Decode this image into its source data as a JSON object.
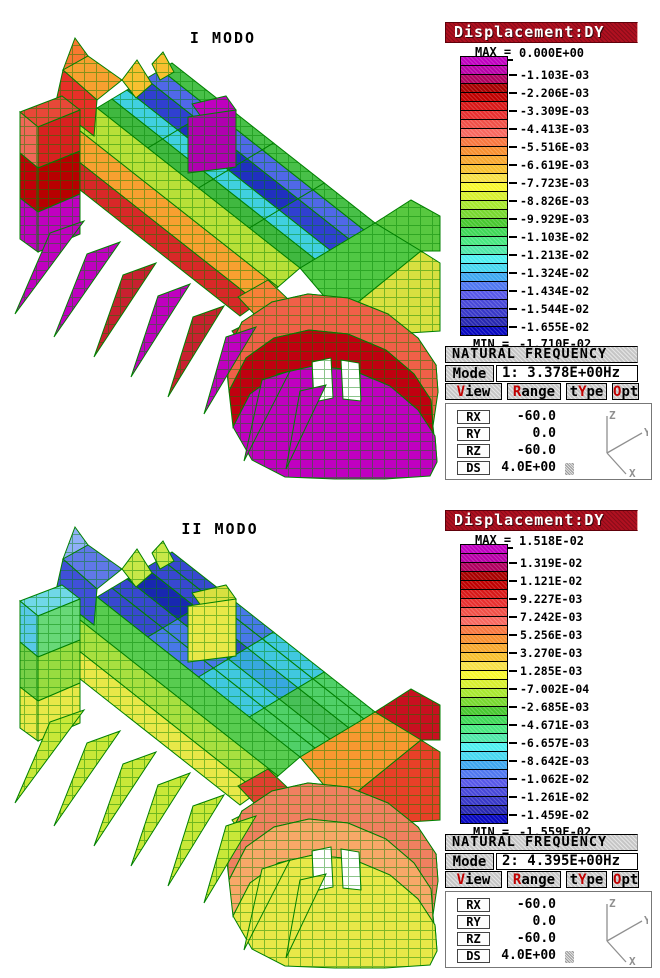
{
  "models": [
    {
      "title": "I MODO"
    },
    {
      "title": "II MODO"
    }
  ],
  "legend_colors": [
    "#C000C0",
    "#B800A8",
    "#B00060",
    "#A80000",
    "#C00000",
    "#D81818",
    "#E83030",
    "#F05048",
    "#F86860",
    "#F87840",
    "#F89030",
    "#F8A830",
    "#F8C030",
    "#F8E048",
    "#F8F830",
    "#D8F030",
    "#A8E830",
    "#78D830",
    "#48C830",
    "#40D858",
    "#48E880",
    "#50E8A8",
    "#50F0F0",
    "#48D8F0",
    "#40A8F0",
    "#5078F0",
    "#5858E8",
    "#4848D8",
    "#3838C8",
    "#2828B0",
    "#0808C0"
  ],
  "panels": [
    {
      "header": "Displacement:DY",
      "max_label": "MAX =",
      "max_value": "0.000E+00",
      "ticks": [
        "-1.103E-03",
        "-2.206E-03",
        "-3.309E-03",
        "-4.413E-03",
        "-5.516E-03",
        "-6.619E-03",
        "-7.723E-03",
        "-8.826E-03",
        "-9.929E-03",
        "-1.103E-02",
        "-1.213E-02",
        "-1.324E-02",
        "-1.434E-02",
        "-1.544E-02",
        "-1.655E-02"
      ],
      "min_label": "MIN =",
      "min_value": "-1.710E-02",
      "freq_title": "NATURAL FREQUENCY",
      "mode_button": "Mode",
      "mode_value": "1: 3.378E+00Hz",
      "menu": [
        {
          "pre": "",
          "hot": "V",
          "post": "iew"
        },
        {
          "pre": "",
          "hot": "R",
          "post": "ange"
        },
        {
          "pre": "t",
          "hot": "Y",
          "post": "pe"
        },
        {
          "pre": "",
          "hot": "O",
          "post": "pt"
        }
      ],
      "params": [
        {
          "label": "RX",
          "value": "-60.0"
        },
        {
          "label": "RY",
          "value": "0.0"
        },
        {
          "label": "RZ",
          "value": "-60.0"
        },
        {
          "label": "DS",
          "value": "4.0E+00"
        }
      ],
      "axes": {
        "z": "Z",
        "y": "Y",
        "x": "X"
      }
    },
    {
      "header": "Displacement:DY",
      "max_label": "MAX =",
      "max_value": "1.518E-02",
      "ticks": [
        "1.319E-02",
        "1.121E-02",
        "9.227E-03",
        "7.242E-03",
        "5.256E-03",
        "3.270E-03",
        "1.285E-03",
        "-7.002E-04",
        "-2.685E-03",
        "-4.671E-03",
        "-6.657E-03",
        "-8.642E-03",
        "-1.062E-02",
        "-1.261E-02",
        "-1.459E-02"
      ],
      "min_label": "MIN =",
      "min_value": "-1.559E-02",
      "freq_title": "NATURAL FREQUENCY",
      "mode_button": "Mode",
      "mode_value": "2: 4.395E+00Hz",
      "menu": [
        {
          "pre": "",
          "hot": "V",
          "post": "iew"
        },
        {
          "pre": "",
          "hot": "R",
          "post": "ange"
        },
        {
          "pre": "t",
          "hot": "Y",
          "post": "pe"
        },
        {
          "pre": "",
          "hot": "O",
          "post": "pt"
        }
      ],
      "params": [
        {
          "label": "RX",
          "value": "-60.0"
        },
        {
          "label": "RY",
          "value": "0.0"
        },
        {
          "label": "RZ",
          "value": "-60.0"
        },
        {
          "label": "DS",
          "value": "4.0E+00"
        }
      ],
      "axes": {
        "z": "Z",
        "y": "Y",
        "x": "X"
      }
    }
  ],
  "colors": {
    "hotkey": "#C00000",
    "header_red": "#B01020",
    "panel_gray": "#C6C6C6",
    "mesh_green": "#008000"
  }
}
